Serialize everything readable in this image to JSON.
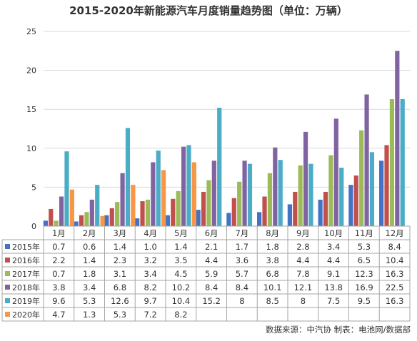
{
  "chart_data": {
    "type": "bar",
    "title": "2015-2020年新能源汽车月度销量趋势图（单位：万辆）",
    "categories": [
      "1月",
      "2月",
      "3月",
      "4月",
      "5月",
      "6月",
      "7月",
      "8月",
      "9月",
      "10月",
      "11月",
      "12月"
    ],
    "ylim": [
      0,
      25
    ],
    "yticks": [
      "0",
      "5",
      "10",
      "15",
      "20",
      "25"
    ],
    "grid": true,
    "legend": "table-left",
    "series": [
      {
        "name": "2015年",
        "color": "#4472C4",
        "values": [
          0.7,
          0.6,
          1.4,
          1.0,
          1.4,
          2.1,
          1.7,
          1.8,
          2.8,
          3.4,
          5.3,
          8.4
        ],
        "labels": [
          "0.7",
          "0.6",
          "1.4",
          "1.0",
          "1.4",
          "2.1",
          "1.7",
          "1.8",
          "2.8",
          "3.4",
          "5.3",
          "8.4"
        ]
      },
      {
        "name": "2016年",
        "color": "#C0504D",
        "values": [
          2.2,
          1.4,
          2.3,
          3.2,
          3.5,
          4.4,
          3.6,
          3.8,
          4.4,
          4.4,
          6.5,
          10.4
        ],
        "labels": [
          "2.2",
          "1.4",
          "2.3",
          "3.2",
          "3.5",
          "4.4",
          "3.6",
          "3.8",
          "4.4",
          "4.4",
          "6.5",
          "10.4"
        ]
      },
      {
        "name": "2017年",
        "color": "#9BBB59",
        "values": [
          0.7,
          1.8,
          3.1,
          3.4,
          4.5,
          5.9,
          5.7,
          6.8,
          7.8,
          9.1,
          12.3,
          16.3
        ],
        "labels": [
          "0.7",
          "1.8",
          "3.1",
          "3.4",
          "4.5",
          "5.9",
          "5.7",
          "6.8",
          "7.8",
          "9.1",
          "12.3",
          "16.3"
        ]
      },
      {
        "name": "2018年",
        "color": "#8064A2",
        "values": [
          3.8,
          3.4,
          6.8,
          8.2,
          10.2,
          8.4,
          8.4,
          10.1,
          12.1,
          13.8,
          16.9,
          22.5
        ],
        "labels": [
          "3.8",
          "3.4",
          "6.8",
          "8.2",
          "10.2",
          "8.4",
          "8.4",
          "10.1",
          "12.1",
          "13.8",
          "16.9",
          "22.5"
        ]
      },
      {
        "name": "2019年",
        "color": "#4BACC6",
        "values": [
          9.6,
          5.3,
          12.6,
          9.7,
          10.4,
          15.2,
          8,
          8.5,
          8,
          7.5,
          9.5,
          16.3
        ],
        "labels": [
          "9.6",
          "5.3",
          "12.6",
          "9.7",
          "10.4",
          "15.2",
          "8",
          "8.5",
          "8",
          "7.5",
          "9.5",
          "16.3"
        ]
      },
      {
        "name": "2020年",
        "color": "#F79646",
        "values": [
          4.7,
          1.3,
          5.3,
          7.2,
          8.2,
          null,
          null,
          null,
          null,
          null,
          null,
          null
        ],
        "labels": [
          "4.7",
          "1.3",
          "5.3",
          "7.2",
          "8.2",
          "",
          "",
          "",
          "",
          "",
          "",
          ""
        ]
      }
    ],
    "source_note": "数据来源：中汽协  制表：电池网/数据部"
  }
}
